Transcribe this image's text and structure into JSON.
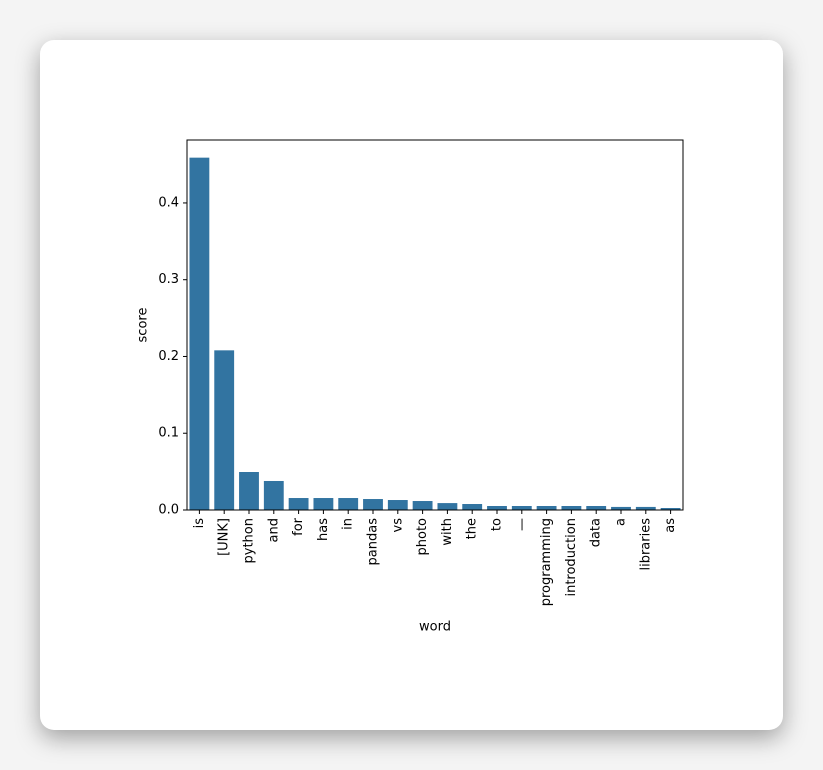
{
  "chart_data": {
    "type": "bar",
    "x_label": "word",
    "y_label": "score",
    "categories": [
      "is",
      "[UNK]",
      "python",
      "and",
      "for",
      "has",
      "in",
      "pandas",
      "vs",
      "photo",
      "with",
      "the",
      "to",
      "—",
      "programming",
      "introduction",
      "data",
      "a",
      "libraries",
      "as"
    ],
    "values": [
      0.459,
      0.208,
      0.0495,
      0.0378,
      0.0156,
      0.0156,
      0.0156,
      0.0143,
      0.013,
      0.0117,
      0.009,
      0.0078,
      0.0052,
      0.0052,
      0.0052,
      0.0052,
      0.0052,
      0.004,
      0.004,
      0.0026
    ],
    "color": "#3274a1",
    "ylim": [
      0,
      0.482
    ],
    "yticks": [
      {
        "value": 0,
        "label": "0.0"
      },
      0.1,
      0.2,
      0.3,
      0.4
    ]
  }
}
